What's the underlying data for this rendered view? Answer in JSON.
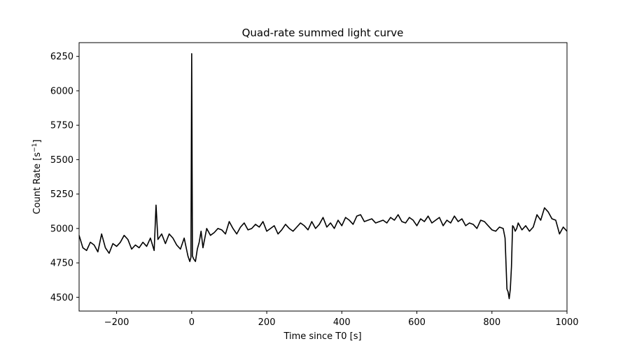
{
  "chart_data": {
    "type": "line",
    "title": "Quad-rate summed light curve",
    "xlabel": "Time since T0 [s]",
    "ylabel_main": "Count Rate [s",
    "ylabel_sup": "−1",
    "ylabel_close": "]",
    "xlim": [
      -300,
      1000
    ],
    "ylim": [
      4400,
      6350
    ],
    "xticks": [
      -200,
      0,
      200,
      400,
      600,
      800,
      1000
    ],
    "xtick_labels": [
      "−200",
      "0",
      "200",
      "400",
      "600",
      "800",
      "1000"
    ],
    "yticks": [
      4500,
      4750,
      5000,
      5250,
      5500,
      5750,
      6000,
      6250
    ],
    "ytick_labels": [
      "4500",
      "4750",
      "5000",
      "5250",
      "5500",
      "5750",
      "6000",
      "6250"
    ],
    "grid": false,
    "line_color": "#000000",
    "series": [
      {
        "x": [
          -300,
          -290,
          -280,
          -270,
          -260,
          -250,
          -240,
          -230,
          -220,
          -210,
          -200,
          -190,
          -180,
          -170,
          -160,
          -150,
          -140,
          -130,
          -120,
          -110,
          -100,
          -95,
          -90,
          -80,
          -70,
          -60,
          -50,
          -40,
          -30,
          -20,
          -10,
          -5,
          -2,
          0,
          2,
          5,
          10,
          15,
          20,
          25,
          30,
          40,
          50,
          60,
          70,
          80,
          90,
          100,
          110,
          120,
          130,
          140,
          150,
          160,
          170,
          180,
          190,
          200,
          210,
          220,
          230,
          240,
          250,
          260,
          270,
          280,
          290,
          300,
          310,
          320,
          330,
          340,
          350,
          360,
          370,
          380,
          390,
          400,
          410,
          420,
          430,
          440,
          450,
          460,
          470,
          480,
          490,
          500,
          510,
          520,
          530,
          540,
          550,
          560,
          570,
          580,
          590,
          600,
          610,
          620,
          630,
          640,
          650,
          660,
          670,
          680,
          690,
          700,
          710,
          720,
          730,
          740,
          750,
          760,
          770,
          780,
          790,
          800,
          810,
          820,
          830,
          835,
          840,
          843,
          846,
          849,
          852,
          855,
          858,
          862,
          866,
          870,
          880,
          890,
          900,
          910,
          920,
          930,
          940,
          950,
          960,
          970,
          980,
          990,
          1000
        ],
        "y": [
          4950,
          4860,
          4840,
          4900,
          4880,
          4830,
          4960,
          4860,
          4820,
          4890,
          4870,
          4900,
          4950,
          4920,
          4850,
          4880,
          4860,
          4900,
          4870,
          4930,
          4840,
          5170,
          4920,
          4960,
          4890,
          4960,
          4930,
          4880,
          4850,
          4930,
          4800,
          4760,
          4790,
          6270,
          4800,
          4780,
          4760,
          4850,
          4900,
          4980,
          4860,
          5000,
          4950,
          4970,
          5000,
          4990,
          4960,
          5050,
          5000,
          4960,
          5010,
          5040,
          4990,
          5000,
          5030,
          5010,
          5050,
          4980,
          5000,
          5020,
          4960,
          4990,
          5030,
          5000,
          4980,
          5010,
          5040,
          5020,
          4990,
          5050,
          5000,
          5030,
          5080,
          5010,
          5040,
          5000,
          5060,
          5020,
          5080,
          5060,
          5030,
          5090,
          5100,
          5050,
          5060,
          5070,
          5040,
          5050,
          5060,
          5040,
          5080,
          5060,
          5100,
          5050,
          5040,
          5080,
          5060,
          5020,
          5070,
          5050,
          5090,
          5040,
          5060,
          5080,
          5020,
          5060,
          5040,
          5090,
          5050,
          5070,
          5020,
          5040,
          5030,
          5000,
          5060,
          5050,
          5020,
          4990,
          4980,
          5010,
          5000,
          4930,
          4560,
          4540,
          4490,
          4560,
          4720,
          5020,
          5010,
          4980,
          5000,
          5040,
          4990,
          5020,
          4980,
          5010,
          5100,
          5060,
          5150,
          5120,
          5070,
          5060,
          4960,
          5010,
          4980
        ]
      }
    ]
  }
}
